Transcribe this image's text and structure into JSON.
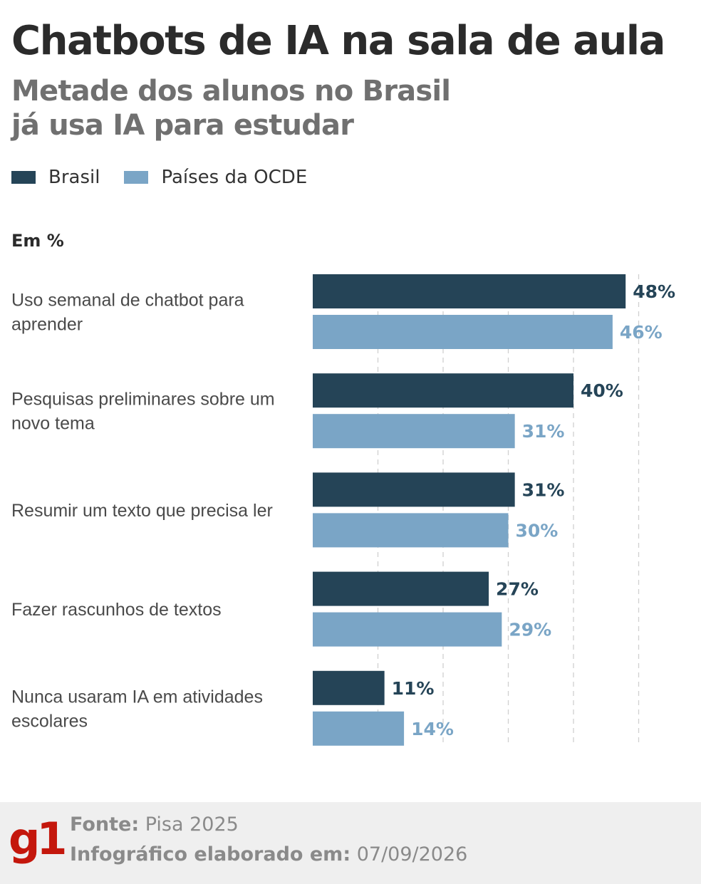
{
  "header": {
    "title": "Chatbots de IA na sala de aula",
    "subtitle_line1": "Metade dos alunos no Brasil",
    "subtitle_line2": "já usa IA para estudar"
  },
  "legend": {
    "brasil": "Brasil",
    "ocde": "Países da OCDE"
  },
  "unit_label": "Em %",
  "colors": {
    "brasil": "#254457",
    "ocde": "#7aa5c6",
    "grid": "#d0d0d0",
    "brand": "#c4170c"
  },
  "chart_data": {
    "type": "bar",
    "orientation": "horizontal",
    "categories": [
      [
        "Uso semanal de chatbot para",
        "aprender"
      ],
      [
        "Pesquisas preliminares sobre um",
        "novo tema"
      ],
      [
        "Resumir um texto que precisa ler"
      ],
      [
        "Fazer rascunhos de textos"
      ],
      [
        "Nunca usaram IA em atividades",
        "escolares"
      ]
    ],
    "series": [
      {
        "name": "Brasil",
        "values": [
          48,
          40,
          31,
          27,
          11
        ],
        "labels": [
          "48%",
          "40%",
          "31%",
          "27%",
          "11%"
        ]
      },
      {
        "name": "Países da OCDE",
        "values": [
          46,
          31,
          30,
          29,
          14
        ],
        "labels": [
          "46%",
          "31%",
          "30%",
          "29%",
          "14%"
        ]
      }
    ],
    "xlim": [
      0,
      50
    ],
    "gridlines": [
      10,
      20,
      30,
      40,
      50
    ],
    "grid": true,
    "legend_position": "top-left"
  },
  "footer": {
    "logo": "g1",
    "source_label": "Fonte:",
    "source_value": "Pisa 2025",
    "date_label": "Infográfico elaborado em:",
    "date_value": "07/09/2026"
  }
}
